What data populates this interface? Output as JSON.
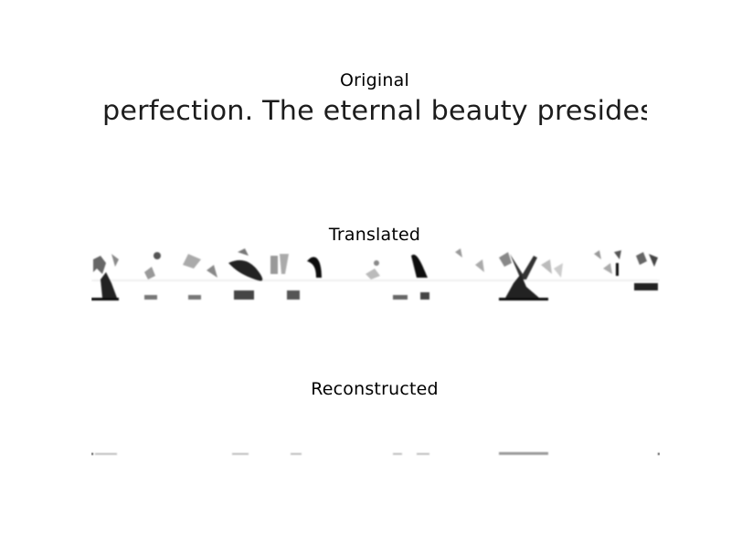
{
  "panels": {
    "original": {
      "title": "Original",
      "text": "perfection. The eternal beauty presides"
    },
    "translated": {
      "title": "Translated"
    },
    "reconstructed": {
      "title": "Reconstructed"
    }
  }
}
